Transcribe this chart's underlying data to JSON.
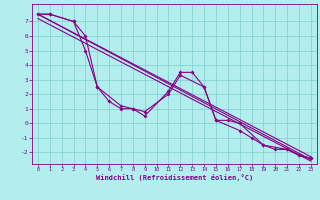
{
  "xlabel": "Windchill (Refroidissement éolien,°C)",
  "background_color": "#b2eeee",
  "grid_color": "#80cccc",
  "line_color": "#880088",
  "ylim": [
    -2.8,
    8.2
  ],
  "xlim": [
    -0.5,
    23.5
  ],
  "yticks": [
    -2,
    -1,
    0,
    1,
    2,
    3,
    4,
    5,
    6,
    7
  ],
  "xticks": [
    0,
    1,
    2,
    3,
    4,
    5,
    6,
    7,
    8,
    9,
    10,
    11,
    12,
    13,
    14,
    15,
    16,
    17,
    18,
    19,
    20,
    21,
    22,
    23
  ],
  "reg_lines": [
    {
      "x": [
        0,
        23
      ],
      "y": [
        7.5,
        -2.3
      ]
    },
    {
      "x": [
        0,
        23
      ],
      "y": [
        7.5,
        -2.5
      ]
    },
    {
      "x": [
        0,
        23
      ],
      "y": [
        7.2,
        -2.6
      ]
    }
  ],
  "jagged1_x": [
    0,
    1,
    3,
    4,
    5,
    7,
    8,
    9,
    11,
    12,
    13,
    14,
    15,
    16,
    17,
    19,
    21,
    22,
    23
  ],
  "jagged1_y": [
    7.5,
    7.5,
    7.0,
    6.0,
    2.5,
    1.2,
    1.0,
    0.5,
    2.2,
    3.5,
    3.5,
    2.5,
    0.2,
    0.2,
    0.0,
    -1.5,
    -1.8,
    -2.2,
    -2.4
  ],
  "jagged2_x": [
    0,
    1,
    3,
    4,
    5,
    6,
    7,
    8,
    9,
    11,
    12,
    14,
    15,
    17,
    18,
    19,
    20,
    21,
    22,
    23
  ],
  "jagged2_y": [
    7.5,
    7.5,
    7.0,
    5.0,
    2.5,
    1.5,
    1.0,
    1.0,
    0.8,
    2.0,
    3.3,
    2.5,
    0.2,
    -0.5,
    -1.0,
    -1.5,
    -1.8,
    -1.8,
    -2.2,
    -2.4
  ]
}
